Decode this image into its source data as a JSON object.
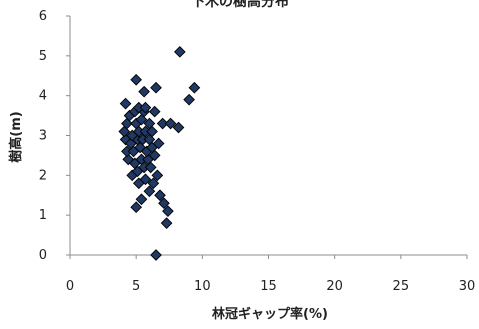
{
  "chart_data": {
    "type": "scatter",
    "title": "下木の樹高分布",
    "xlabel": "林冠ギャップ率(%)",
    "ylabel": "樹高(m)",
    "xlim": [
      0,
      30
    ],
    "ylim": [
      0,
      6
    ],
    "xticks": [
      0,
      5,
      10,
      15,
      20,
      25,
      30
    ],
    "yticks": [
      0,
      1,
      2,
      3,
      4,
      5,
      6
    ],
    "grid": false,
    "legend": "none",
    "marker": "diamond",
    "marker_color": "#1f3864",
    "series": [
      {
        "points": [
          [
            6.5,
            0.0
          ],
          [
            7.3,
            0.8
          ],
          [
            7.4,
            1.1
          ],
          [
            7.1,
            1.3
          ],
          [
            5.0,
            1.2
          ],
          [
            5.4,
            1.4
          ],
          [
            6.0,
            1.6
          ],
          [
            6.8,
            1.5
          ],
          [
            5.2,
            1.8
          ],
          [
            5.7,
            1.9
          ],
          [
            6.3,
            1.8
          ],
          [
            6.6,
            2.0
          ],
          [
            4.7,
            2.0
          ],
          [
            5.1,
            2.1
          ],
          [
            5.6,
            2.2
          ],
          [
            6.1,
            2.2
          ],
          [
            4.4,
            2.4
          ],
          [
            4.9,
            2.3
          ],
          [
            5.4,
            2.4
          ],
          [
            5.9,
            2.4
          ],
          [
            6.4,
            2.5
          ],
          [
            4.3,
            2.6
          ],
          [
            4.8,
            2.6
          ],
          [
            5.3,
            2.7
          ],
          [
            5.8,
            2.6
          ],
          [
            6.2,
            2.7
          ],
          [
            4.2,
            2.9
          ],
          [
            4.6,
            2.8
          ],
          [
            5.1,
            2.9
          ],
          [
            5.5,
            2.9
          ],
          [
            6.0,
            2.9
          ],
          [
            6.7,
            2.8
          ],
          [
            4.1,
            3.1
          ],
          [
            4.7,
            3.0
          ],
          [
            5.2,
            3.1
          ],
          [
            5.7,
            3.1
          ],
          [
            6.2,
            3.1
          ],
          [
            4.3,
            3.3
          ],
          [
            5.0,
            3.3
          ],
          [
            5.4,
            3.4
          ],
          [
            6.0,
            3.3
          ],
          [
            7.0,
            3.3
          ],
          [
            7.6,
            3.3
          ],
          [
            8.2,
            3.2
          ],
          [
            4.5,
            3.5
          ],
          [
            4.9,
            3.6
          ],
          [
            5.6,
            3.6
          ],
          [
            6.4,
            3.6
          ],
          [
            4.2,
            3.8
          ],
          [
            5.2,
            3.7
          ],
          [
            5.7,
            3.7
          ],
          [
            6.5,
            4.2
          ],
          [
            5.6,
            4.1
          ],
          [
            5.0,
            4.4
          ],
          [
            8.3,
            5.1
          ],
          [
            9.4,
            4.2
          ],
          [
            9.0,
            3.9
          ]
        ]
      }
    ]
  }
}
